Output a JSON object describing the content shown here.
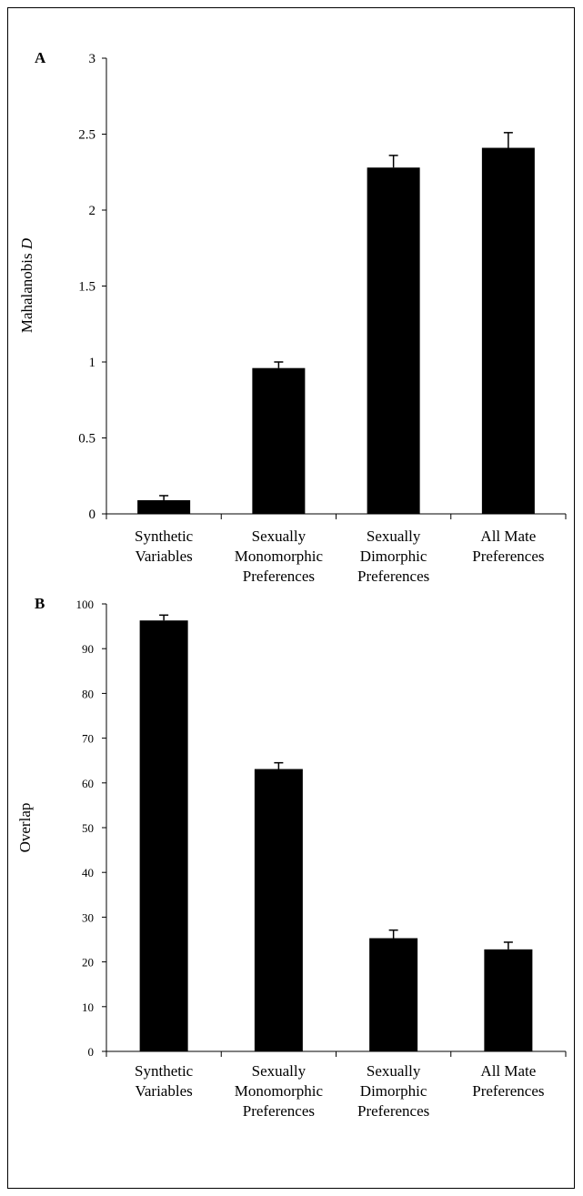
{
  "chart_data": [
    {
      "type": "bar",
      "panel_label": "A",
      "ylabel_main": "Mahalanobis ",
      "ylabel_italic": "D",
      "categories": [
        [
          "Synthetic",
          "Variables"
        ],
        [
          "Sexually",
          "Monomorphic",
          "Preferences"
        ],
        [
          "Sexually",
          "Dimorphic",
          "Preferences"
        ],
        [
          "All Mate",
          "Preferences"
        ]
      ],
      "values": [
        0.09,
        0.96,
        2.28,
        2.41
      ],
      "errors": [
        0.03,
        0.04,
        0.08,
        0.1
      ],
      "ylim": [
        0,
        3
      ],
      "yticks": [
        "0",
        "0.5",
        "1",
        "1.5",
        "2",
        "2.5",
        "3"
      ],
      "bar_color": "#000000"
    },
    {
      "type": "bar",
      "panel_label": "B",
      "ylabel_main": "Overlap",
      "ylabel_italic": "",
      "categories": [
        [
          "Synthetic",
          "Variables"
        ],
        [
          "Sexually",
          "Monomorphic",
          "Preferences"
        ],
        [
          "Sexually",
          "Dimorphic",
          "Preferences"
        ],
        [
          "All Mate",
          "Preferences"
        ]
      ],
      "values": [
        96.3,
        63.1,
        25.3,
        22.8
      ],
      "errors": [
        1.2,
        1.4,
        1.8,
        1.6
      ],
      "ylim": [
        0,
        100
      ],
      "yticks": [
        "0",
        "10",
        "20",
        "30",
        "40",
        "50",
        "60",
        "70",
        "80",
        "90",
        "100"
      ],
      "bar_color": "#000000"
    }
  ]
}
